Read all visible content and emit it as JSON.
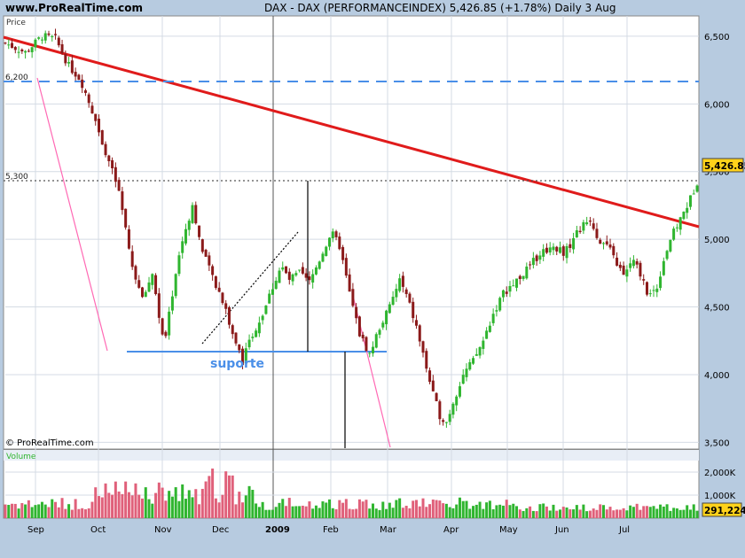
{
  "header": {
    "site": "www.ProRealTime.com",
    "title": "DAX - DAX (PERFORMANCEINDEX)    5,426.85 (+1.78%)    Daily  3 Aug"
  },
  "price_panel_label": "Price",
  "volume_panel_label": "Volume",
  "copyright": "© ProRealTime.com",
  "colors": {
    "up": "#2fb52f",
    "down": "#8b1a1a",
    "trend": "#e01b1b",
    "support": "#4a8fe8",
    "dashed": "#4a8fe8",
    "pink": "#ff69b4",
    "background": "#b7cbe0",
    "panel": "#ffffff"
  },
  "chart_data": [
    {
      "type": "candlestick",
      "title": "DAX - DAX (PERFORMANCEINDEX)",
      "last_value": "5,426.85",
      "change": "+1.78%",
      "interval": "Daily",
      "date": "3 Aug",
      "ylim": [
        3450,
        6650
      ],
      "y_ticks": [
        "6,500",
        "6,000",
        "5,500",
        "5,000",
        "4,500",
        "4,000",
        "3,500"
      ],
      "x_ticks": [
        "Sep",
        "Oct",
        "Nov",
        "Dec",
        "2009",
        "Feb",
        "Mar",
        "Apr",
        "May",
        "Jun",
        "Jul"
      ],
      "annotations": {
        "level_6200": "6,200",
        "level_5300": "5,300",
        "support_label": "suporte"
      },
      "price_path_knots": [
        [
          0,
          6450
        ],
        [
          12,
          6380
        ],
        [
          22,
          6500
        ],
        [
          30,
          6480
        ],
        [
          38,
          6280
        ],
        [
          45,
          6180
        ],
        [
          52,
          5950
        ],
        [
          60,
          5650
        ],
        [
          68,
          5350
        ],
        [
          75,
          4850
        ],
        [
          82,
          4550
        ],
        [
          88,
          4750
        ],
        [
          95,
          4200
        ],
        [
          100,
          4600
        ],
        [
          105,
          4950
        ],
        [
          112,
          5250
        ],
        [
          118,
          4900
        ],
        [
          125,
          4700
        ],
        [
          130,
          4550
        ],
        [
          136,
          4300
        ],
        [
          142,
          4100
        ],
        [
          148,
          4300
        ],
        [
          154,
          4450
        ],
        [
          160,
          4650
        ],
        [
          165,
          4800
        ],
        [
          170,
          4700
        ],
        [
          176,
          4750
        ],
        [
          182,
          4680
        ],
        [
          188,
          4850
        ],
        [
          195,
          5050
        ],
        [
          200,
          4950
        ],
        [
          206,
          4600
        ],
        [
          212,
          4300
        ],
        [
          218,
          4150
        ],
        [
          224,
          4350
        ],
        [
          230,
          4500
        ],
        [
          236,
          4700
        ],
        [
          241,
          4550
        ],
        [
          246,
          4350
        ],
        [
          252,
          4050
        ],
        [
          256,
          3850
        ],
        [
          260,
          3700
        ],
        [
          264,
          3650
        ],
        [
          268,
          3800
        ],
        [
          274,
          4000
        ],
        [
          280,
          4100
        ],
        [
          286,
          4250
        ],
        [
          292,
          4450
        ],
        [
          298,
          4600
        ],
        [
          306,
          4700
        ],
        [
          314,
          4800
        ],
        [
          320,
          4900
        ],
        [
          328,
          4950
        ],
        [
          335,
          4900
        ],
        [
          342,
          5050
        ],
        [
          350,
          5150
        ],
        [
          355,
          5000
        ],
        [
          360,
          4950
        ],
        [
          365,
          4850
        ],
        [
          370,
          4720
        ],
        [
          375,
          4850
        ],
        [
          380,
          4750
        ],
        [
          385,
          4580
        ],
        [
          390,
          4650
        ],
        [
          394,
          4850
        ],
        [
          398,
          5000
        ],
        [
          404,
          5150
        ],
        [
          410,
          5300
        ],
        [
          414,
          5426.85
        ]
      ]
    },
    {
      "type": "bar",
      "title": "Volume",
      "last_value": "291,224",
      "y_ticks": [
        "2,000K",
        "1,000K"
      ],
      "ylim": [
        0,
        2500000
      ]
    }
  ]
}
